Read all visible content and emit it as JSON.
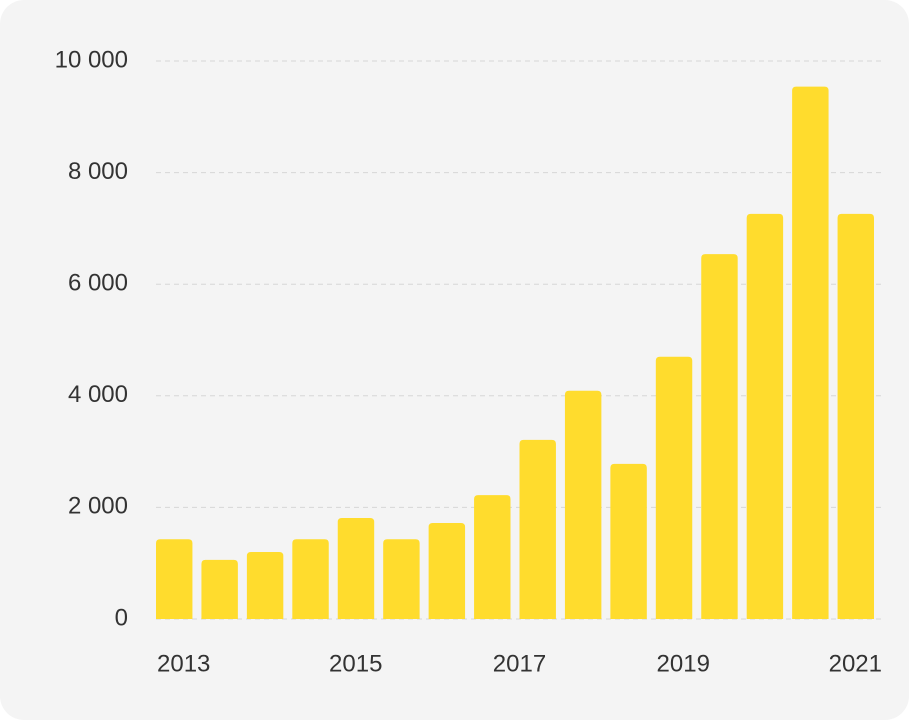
{
  "chart_data": {
    "type": "bar",
    "categories": [
      null,
      null,
      null,
      null,
      null,
      null,
      null,
      null,
      null,
      null,
      null,
      null,
      null,
      null,
      null,
      null
    ],
    "x_labels": [
      "2013",
      "2015",
      "2017",
      "2019",
      "2021"
    ],
    "values": [
      1430,
      1060,
      1200,
      1430,
      1810,
      1430,
      1720,
      2220,
      3210,
      4090,
      2780,
      4700,
      6540,
      7260,
      9540,
      7260
    ],
    "color": "#ffdc2d",
    "ylim": [
      0,
      10000
    ],
    "yticks": [
      0,
      {
        "value": 2000,
        "label": "2 000"
      },
      {
        "value": 4000,
        "label": "4 000"
      },
      {
        "value": 6000,
        "label": "6 000"
      },
      {
        "value": 8000,
        "label": "8 000"
      },
      {
        "value": 10000,
        "label": "10 000"
      }
    ],
    "grid": true
  }
}
